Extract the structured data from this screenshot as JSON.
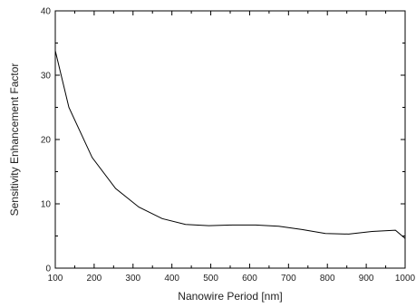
{
  "chart_data": {
    "type": "line",
    "title": "",
    "xlabel": "Nanowire Period [nm]",
    "ylabel": "Sensitivity Enhancement Factor",
    "xlim": [
      100,
      1000
    ],
    "ylim": [
      0,
      40
    ],
    "xticks": [
      100,
      200,
      300,
      400,
      500,
      600,
      700,
      800,
      900,
      1000
    ],
    "yticks": [
      0,
      10,
      20,
      30,
      40
    ],
    "grid": false,
    "series": [
      {
        "x": [
          100,
          135,
          195,
          255,
          315,
          375,
          435,
          495,
          555,
          615,
          675,
          735,
          795,
          855,
          915,
          975,
          1000
        ],
        "y": [
          33.8,
          25.0,
          17.2,
          12.4,
          9.5,
          7.7,
          6.8,
          6.6,
          6.7,
          6.7,
          6.5,
          6.0,
          5.4,
          5.3,
          5.7,
          5.9,
          4.6
        ],
        "color": "#000000"
      }
    ]
  }
}
